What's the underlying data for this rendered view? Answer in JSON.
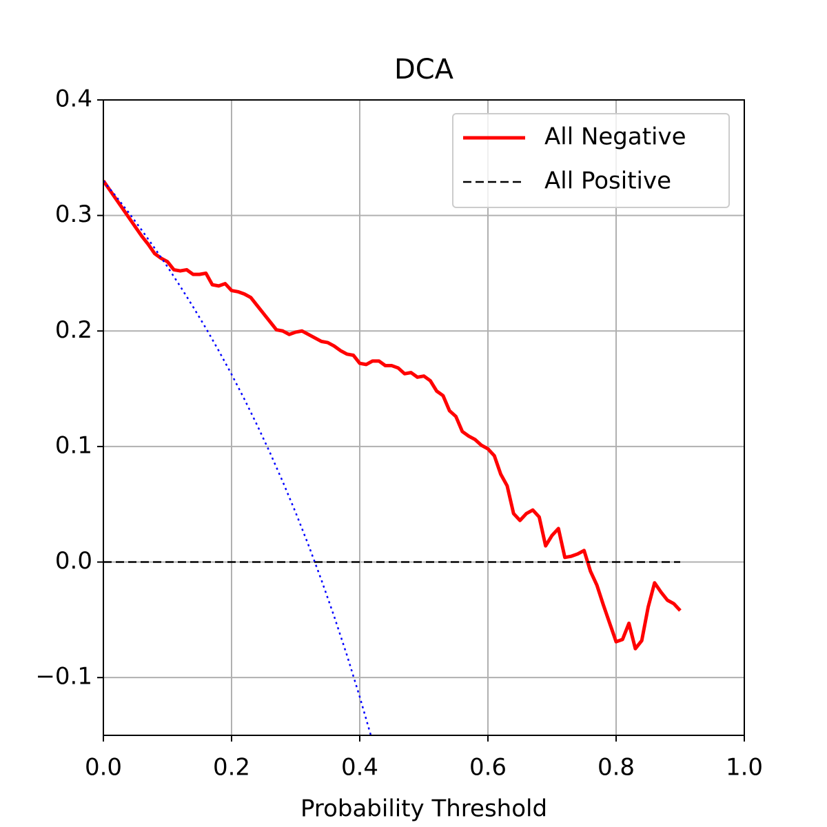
{
  "chart_data": {
    "type": "line",
    "title": "DCA",
    "xlabel": "Probability Threshold",
    "xlim": [
      0,
      1
    ],
    "ylim": [
      -0.15,
      0.4
    ],
    "xticks": [
      {
        "value": 0,
        "label": "0.0"
      },
      0.2,
      0.4,
      0.6,
      0.8,
      {
        "value": 1,
        "label": "1.0"
      }
    ],
    "yticks": [
      {
        "value": -0.1,
        "label": "−0.1"
      },
      {
        "value": 0,
        "label": "0.0"
      },
      0.1,
      0.2,
      0.3,
      0.4
    ],
    "grid": true,
    "legend": "upper right",
    "series": [
      {
        "name": "All Negative",
        "color": "#ff0000",
        "style": "solid",
        "x": [
          0,
          0.01,
          0.02,
          0.03,
          0.04,
          0.05,
          0.06,
          0.07,
          0.08,
          0.09,
          0.1,
          0.11,
          0.12,
          0.13,
          0.14,
          0.15,
          0.16,
          0.17,
          0.18,
          0.19,
          0.2,
          0.21,
          0.22,
          0.23,
          0.24,
          0.25,
          0.26,
          0.27,
          0.28,
          0.29,
          0.3,
          0.31,
          0.32,
          0.33,
          0.34,
          0.35,
          0.36,
          0.37,
          0.38,
          0.39,
          0.4,
          0.41,
          0.42,
          0.43,
          0.44,
          0.45,
          0.46,
          0.47,
          0.48,
          0.49,
          0.5,
          0.51,
          0.52,
          0.53,
          0.54,
          0.55,
          0.56,
          0.57,
          0.58,
          0.59,
          0.6,
          0.61,
          0.62,
          0.63,
          0.64,
          0.65,
          0.66,
          0.67,
          0.68,
          0.69,
          0.7,
          0.71,
          0.72,
          0.73,
          0.74,
          0.75,
          0.76,
          0.77,
          0.78,
          0.79,
          0.8,
          0.81,
          0.82,
          0.83,
          0.84,
          0.85,
          0.86,
          0.87,
          0.88,
          0.89,
          0.9
        ],
        "values": [
          0.33,
          0.322,
          0.314,
          0.306,
          0.298,
          0.29,
          0.282,
          0.275,
          0.267,
          0.263,
          0.26,
          0.253,
          0.252,
          0.253,
          0.249,
          0.249,
          0.25,
          0.24,
          0.239,
          0.241,
          0.235,
          0.234,
          0.232,
          0.229,
          0.222,
          0.215,
          0.208,
          0.201,
          0.2,
          0.197,
          0.199,
          0.2,
          0.197,
          0.194,
          0.191,
          0.19,
          0.187,
          0.183,
          0.18,
          0.179,
          0.172,
          0.171,
          0.174,
          0.174,
          0.17,
          0.17,
          0.168,
          0.163,
          0.164,
          0.16,
          0.161,
          0.157,
          0.148,
          0.144,
          0.131,
          0.126,
          0.113,
          0.109,
          0.106,
          0.101,
          0.098,
          0.092,
          0.076,
          0.066,
          0.042,
          0.036,
          0.042,
          0.045,
          0.039,
          0.014,
          0.023,
          0.029,
          0.004,
          0.005,
          0.007,
          0.01,
          -0.008,
          -0.02,
          -0.037,
          -0.053,
          -0.069,
          -0.067,
          -0.053,
          -0.075,
          -0.068,
          -0.039,
          -0.018,
          -0.026,
          -0.033,
          -0.036,
          -0.042
        ]
      },
      {
        "name": "All Positive",
        "color": "#000000",
        "style": "dashed",
        "x": [
          0,
          0.9
        ],
        "values": [
          0,
          0
        ]
      },
      {
        "color": "#0000ff",
        "style": "dotted",
        "x": [
          0,
          0.02,
          0.04,
          0.06,
          0.08,
          0.1,
          0.12,
          0.14,
          0.16,
          0.18,
          0.2,
          0.22,
          0.24,
          0.26,
          0.28,
          0.3,
          0.32,
          0.34,
          0.36,
          0.38,
          0.4,
          0.42
        ],
        "values": [
          0.33,
          0.3163,
          0.3021,
          0.2872,
          0.2717,
          0.2556,
          0.2386,
          0.2209,
          0.2024,
          0.1829,
          0.1625,
          0.141,
          0.1184,
          0.0946,
          0.0694,
          0.0429,
          0.0147,
          -0.0152,
          -0.0469,
          -0.0806,
          -0.1167,
          -0.1552
        ]
      }
    ]
  }
}
